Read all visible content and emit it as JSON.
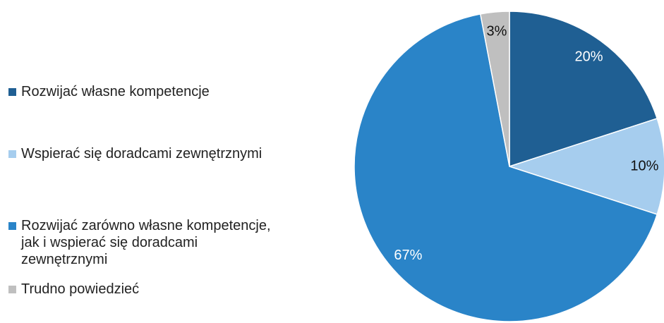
{
  "chart_data": {
    "type": "pie",
    "categories": [
      "Rozwijać własne kompetencje",
      "Wspierać się doradcami zewnętrznymi",
      "Rozwijać zarówno własne kompetencje, jak i wspierać się doradcami zewnętrznymi",
      "Trudno powiedzieć"
    ],
    "values": [
      20,
      10,
      67,
      3
    ],
    "value_labels": [
      "20%",
      "10%",
      "67%",
      "3%"
    ],
    "colors": [
      "#1f5f93",
      "#a6cdee",
      "#2a84c8",
      "#bfbfbf"
    ],
    "legend": "left"
  }
}
